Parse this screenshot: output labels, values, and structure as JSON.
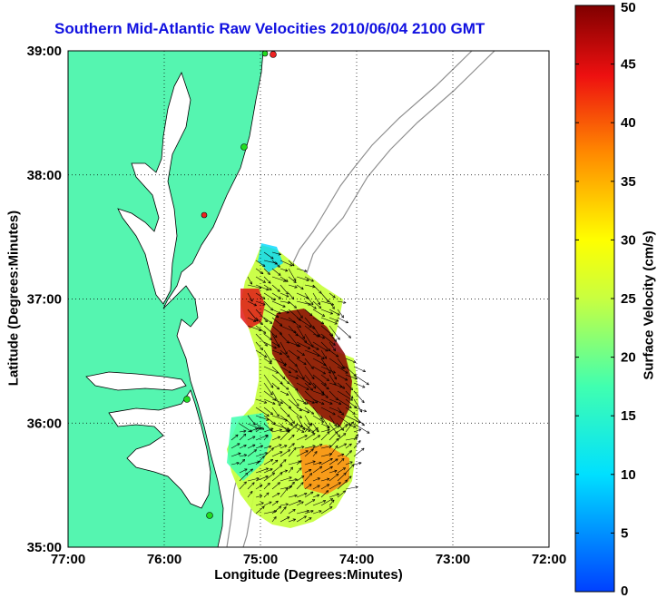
{
  "title": "Southern Mid-Atlantic Raw Velocities 2010/06/04 2100 GMT",
  "axes": {
    "xlabel": "Longitude (Degrees:Minutes)",
    "ylabel": "Latitude (Degrees:Minutes)",
    "x_ticks": [
      "77:00",
      "76:00",
      "75:00",
      "74:00",
      "73:00",
      "72:00"
    ],
    "y_ticks": [
      "39:00",
      "38:00",
      "37:00",
      "36:00",
      "35:00"
    ],
    "x_range_deg_west": [
      77,
      72
    ],
    "y_range_deg_north": [
      35,
      39
    ],
    "grid": "dotted"
  },
  "colorbar": {
    "label": "Surface Velocity (cm/s)",
    "ticks": [
      "50",
      "45",
      "40",
      "35",
      "30",
      "25",
      "20",
      "15",
      "10",
      "5",
      "0"
    ],
    "range": [
      0,
      50
    ],
    "colormap": "jet"
  },
  "colors": {
    "land": "#55f5b0",
    "title": "#1010e0",
    "coastline": "#000000",
    "bathymetry": "#909090",
    "station_green": "#22dd22",
    "station_red": "#ee2222"
  }
}
